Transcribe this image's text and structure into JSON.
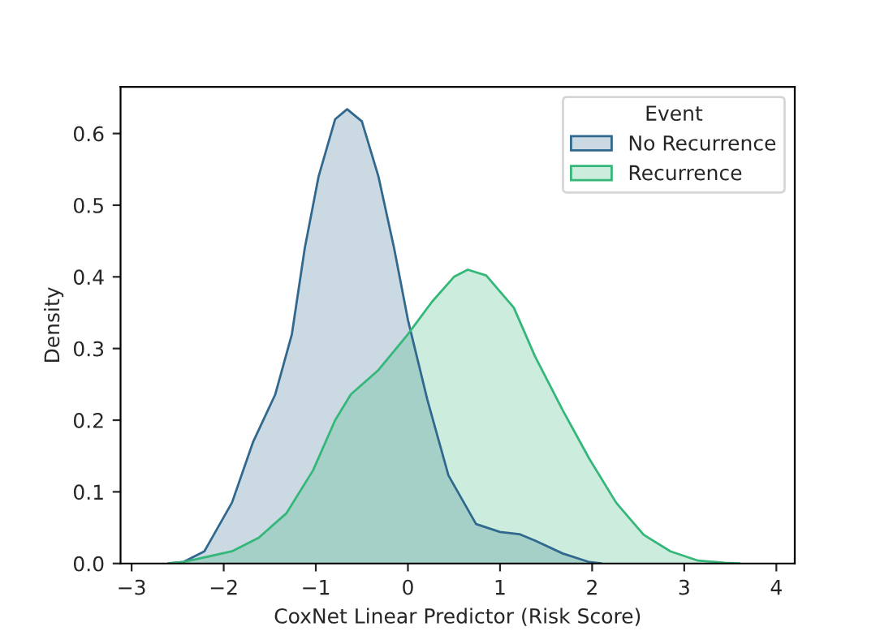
{
  "chart_data": {
    "type": "area",
    "xlabel": "CoxNet Linear Predictor (Risk Score)",
    "ylabel": "Density",
    "legend_title": "Event",
    "legend": "top right",
    "grid": false,
    "xlim": [
      -3.12,
      4.2
    ],
    "ylim": [
      0,
      0.665
    ],
    "xticks": [
      {
        "value": -3,
        "label": "−3"
      },
      {
        "value": -2,
        "label": "−2"
      },
      {
        "value": -1,
        "label": "−1"
      },
      0,
      1,
      2,
      3,
      4
    ],
    "yticks": [
      {
        "value": 0,
        "label": "0.0"
      },
      0.1,
      0.2,
      0.3,
      0.4,
      0.5,
      0.6
    ],
    "series": [
      {
        "name": "No Recurrence",
        "color": "#31688e",
        "x": [
          -2.6,
          -2.44,
          -2.21,
          -1.91,
          -1.68,
          -1.44,
          -1.26,
          -1.12,
          -0.97,
          -0.79,
          -0.66,
          -0.5,
          -0.32,
          -0.15,
          0,
          0.21,
          0.44,
          0.74,
          1.0,
          1.21,
          1.38,
          1.68,
          1.97,
          2.1
        ],
        "values": [
          0,
          0.002,
          0.017,
          0.085,
          0.17,
          0.236,
          0.32,
          0.44,
          0.54,
          0.62,
          0.634,
          0.617,
          0.54,
          0.44,
          0.34,
          0.229,
          0.123,
          0.055,
          0.044,
          0.041,
          0.032,
          0.014,
          0.002,
          0
        ]
      },
      {
        "name": "Recurrence",
        "color": "#35b779",
        "x": [
          -2.6,
          -2.44,
          -1.91,
          -1.62,
          -1.32,
          -1.03,
          -0.79,
          -0.62,
          -0.32,
          0,
          0.26,
          0.5,
          0.65,
          0.85,
          1.15,
          1.38,
          1.68,
          1.97,
          2.26,
          2.56,
          2.85,
          3.15,
          3.44,
          3.6
        ],
        "values": [
          0,
          0.002,
          0.017,
          0.036,
          0.07,
          0.13,
          0.2,
          0.236,
          0.27,
          0.32,
          0.365,
          0.4,
          0.41,
          0.402,
          0.357,
          0.289,
          0.214,
          0.146,
          0.085,
          0.04,
          0.017,
          0.004,
          0.001,
          0
        ]
      }
    ]
  }
}
